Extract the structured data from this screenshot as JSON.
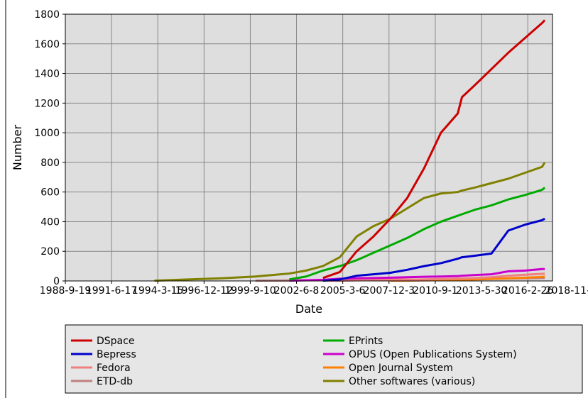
{
  "chart_data": {
    "type": "line",
    "xlabel": "Date",
    "ylabel": "Number",
    "x": [
      "1990-01-01",
      "1992-01-01",
      "1994-01-01",
      "1996-01-01",
      "1998-01-01",
      "2000-01-01",
      "2002-01-01",
      "2003-01-01",
      "2004-01-01",
      "2005-01-01",
      "2006-01-01",
      "2007-01-01",
      "2008-01-01",
      "2009-01-01",
      "2010-01-01",
      "2011-01-01",
      "2012-01-01",
      "2012-04-01",
      "2013-01-01",
      "2014-01-01",
      "2015-01-01",
      "2016-01-01",
      "2017-01-01",
      "2017-03-01"
    ],
    "series": [
      {
        "name": "DSpace",
        "color": "#cc0000",
        "values": [
          null,
          null,
          null,
          null,
          null,
          null,
          null,
          null,
          20,
          60,
          200,
          300,
          420,
          560,
          760,
          1000,
          1130,
          1240,
          1320,
          1430,
          1540,
          1640,
          1740,
          1760
        ]
      },
      {
        "name": "EPrints",
        "color": "#00aa00",
        "values": [
          null,
          null,
          null,
          null,
          null,
          null,
          10,
          30,
          70,
          100,
          140,
          190,
          240,
          290,
          350,
          400,
          440,
          450,
          480,
          510,
          550,
          580,
          615,
          630
        ]
      },
      {
        "name": "Bepress",
        "color": "#0000cc",
        "values": [
          null,
          null,
          null,
          null,
          null,
          null,
          null,
          null,
          2,
          10,
          35,
          45,
          55,
          75,
          100,
          120,
          150,
          160,
          170,
          185,
          340,
          380,
          410,
          420
        ]
      },
      {
        "name": "OPUS (Open Publications System)",
        "color": "#cc00cc",
        "values": [
          null,
          null,
          null,
          null,
          null,
          null,
          2,
          5,
          8,
          15,
          18,
          20,
          22,
          25,
          28,
          30,
          33,
          35,
          40,
          45,
          65,
          70,
          80,
          80
        ]
      },
      {
        "name": "Fedora",
        "color": "#f08080",
        "values": [
          null,
          null,
          null,
          null,
          null,
          null,
          null,
          null,
          1,
          2,
          4,
          6,
          8,
          9,
          10,
          13,
          16,
          17,
          20,
          25,
          35,
          42,
          48,
          50
        ]
      },
      {
        "name": "Open Journal System",
        "color": "#ff8000",
        "values": [
          null,
          null,
          null,
          null,
          null,
          null,
          null,
          null,
          null,
          null,
          null,
          null,
          1,
          2,
          4,
          6,
          8,
          9,
          10,
          14,
          18,
          22,
          27,
          30
        ]
      },
      {
        "name": "ETD-db",
        "color": "#c08080",
        "values": [
          null,
          null,
          null,
          null,
          null,
          2,
          3,
          4,
          5,
          6,
          7,
          8,
          9,
          9,
          10,
          11,
          12,
          12,
          13,
          14,
          16,
          18,
          20,
          20
        ]
      },
      {
        "name": "Other softwares (various)",
        "color": "#808000",
        "values": [
          null,
          null,
          2,
          10,
          18,
          30,
          50,
          70,
          100,
          160,
          300,
          370,
          420,
          490,
          560,
          590,
          600,
          610,
          630,
          660,
          690,
          730,
          770,
          800
        ]
      }
    ],
    "xlim": [
      "1988-09-19",
      "2017-08-15"
    ],
    "xticks": [
      {
        "value": "1988-09-19",
        "label": "1988-9-19"
      },
      {
        "value": "1991-06-17",
        "label": "1991-6-17"
      },
      {
        "value": "1994-03-15",
        "label": "1994-3-15"
      },
      {
        "value": "1996-12-12",
        "label": "1996-12-12"
      },
      {
        "value": "1999-09-10",
        "label": "1999-9-10"
      },
      {
        "value": "2002-06-08",
        "label": "2002-6-8"
      },
      {
        "value": "2005-03-06",
        "label": "2005-3-6"
      },
      {
        "value": "2007-12-03",
        "label": "2007-12-3"
      },
      {
        "value": "2010-09-01",
        "label": "2010-9-1"
      },
      {
        "value": "2013-05-30",
        "label": "2013-5-30"
      },
      {
        "value": "2016-02-26",
        "label": "2016-2-26"
      },
      {
        "value": "2018-11-24",
        "label": "2018-11-24"
      }
    ],
    "ylim": [
      0,
      1800
    ],
    "yticks": [
      0,
      200,
      400,
      600,
      800,
      1000,
      1200,
      1400,
      1600,
      1800
    ],
    "grid": true,
    "legend": "bottom"
  }
}
